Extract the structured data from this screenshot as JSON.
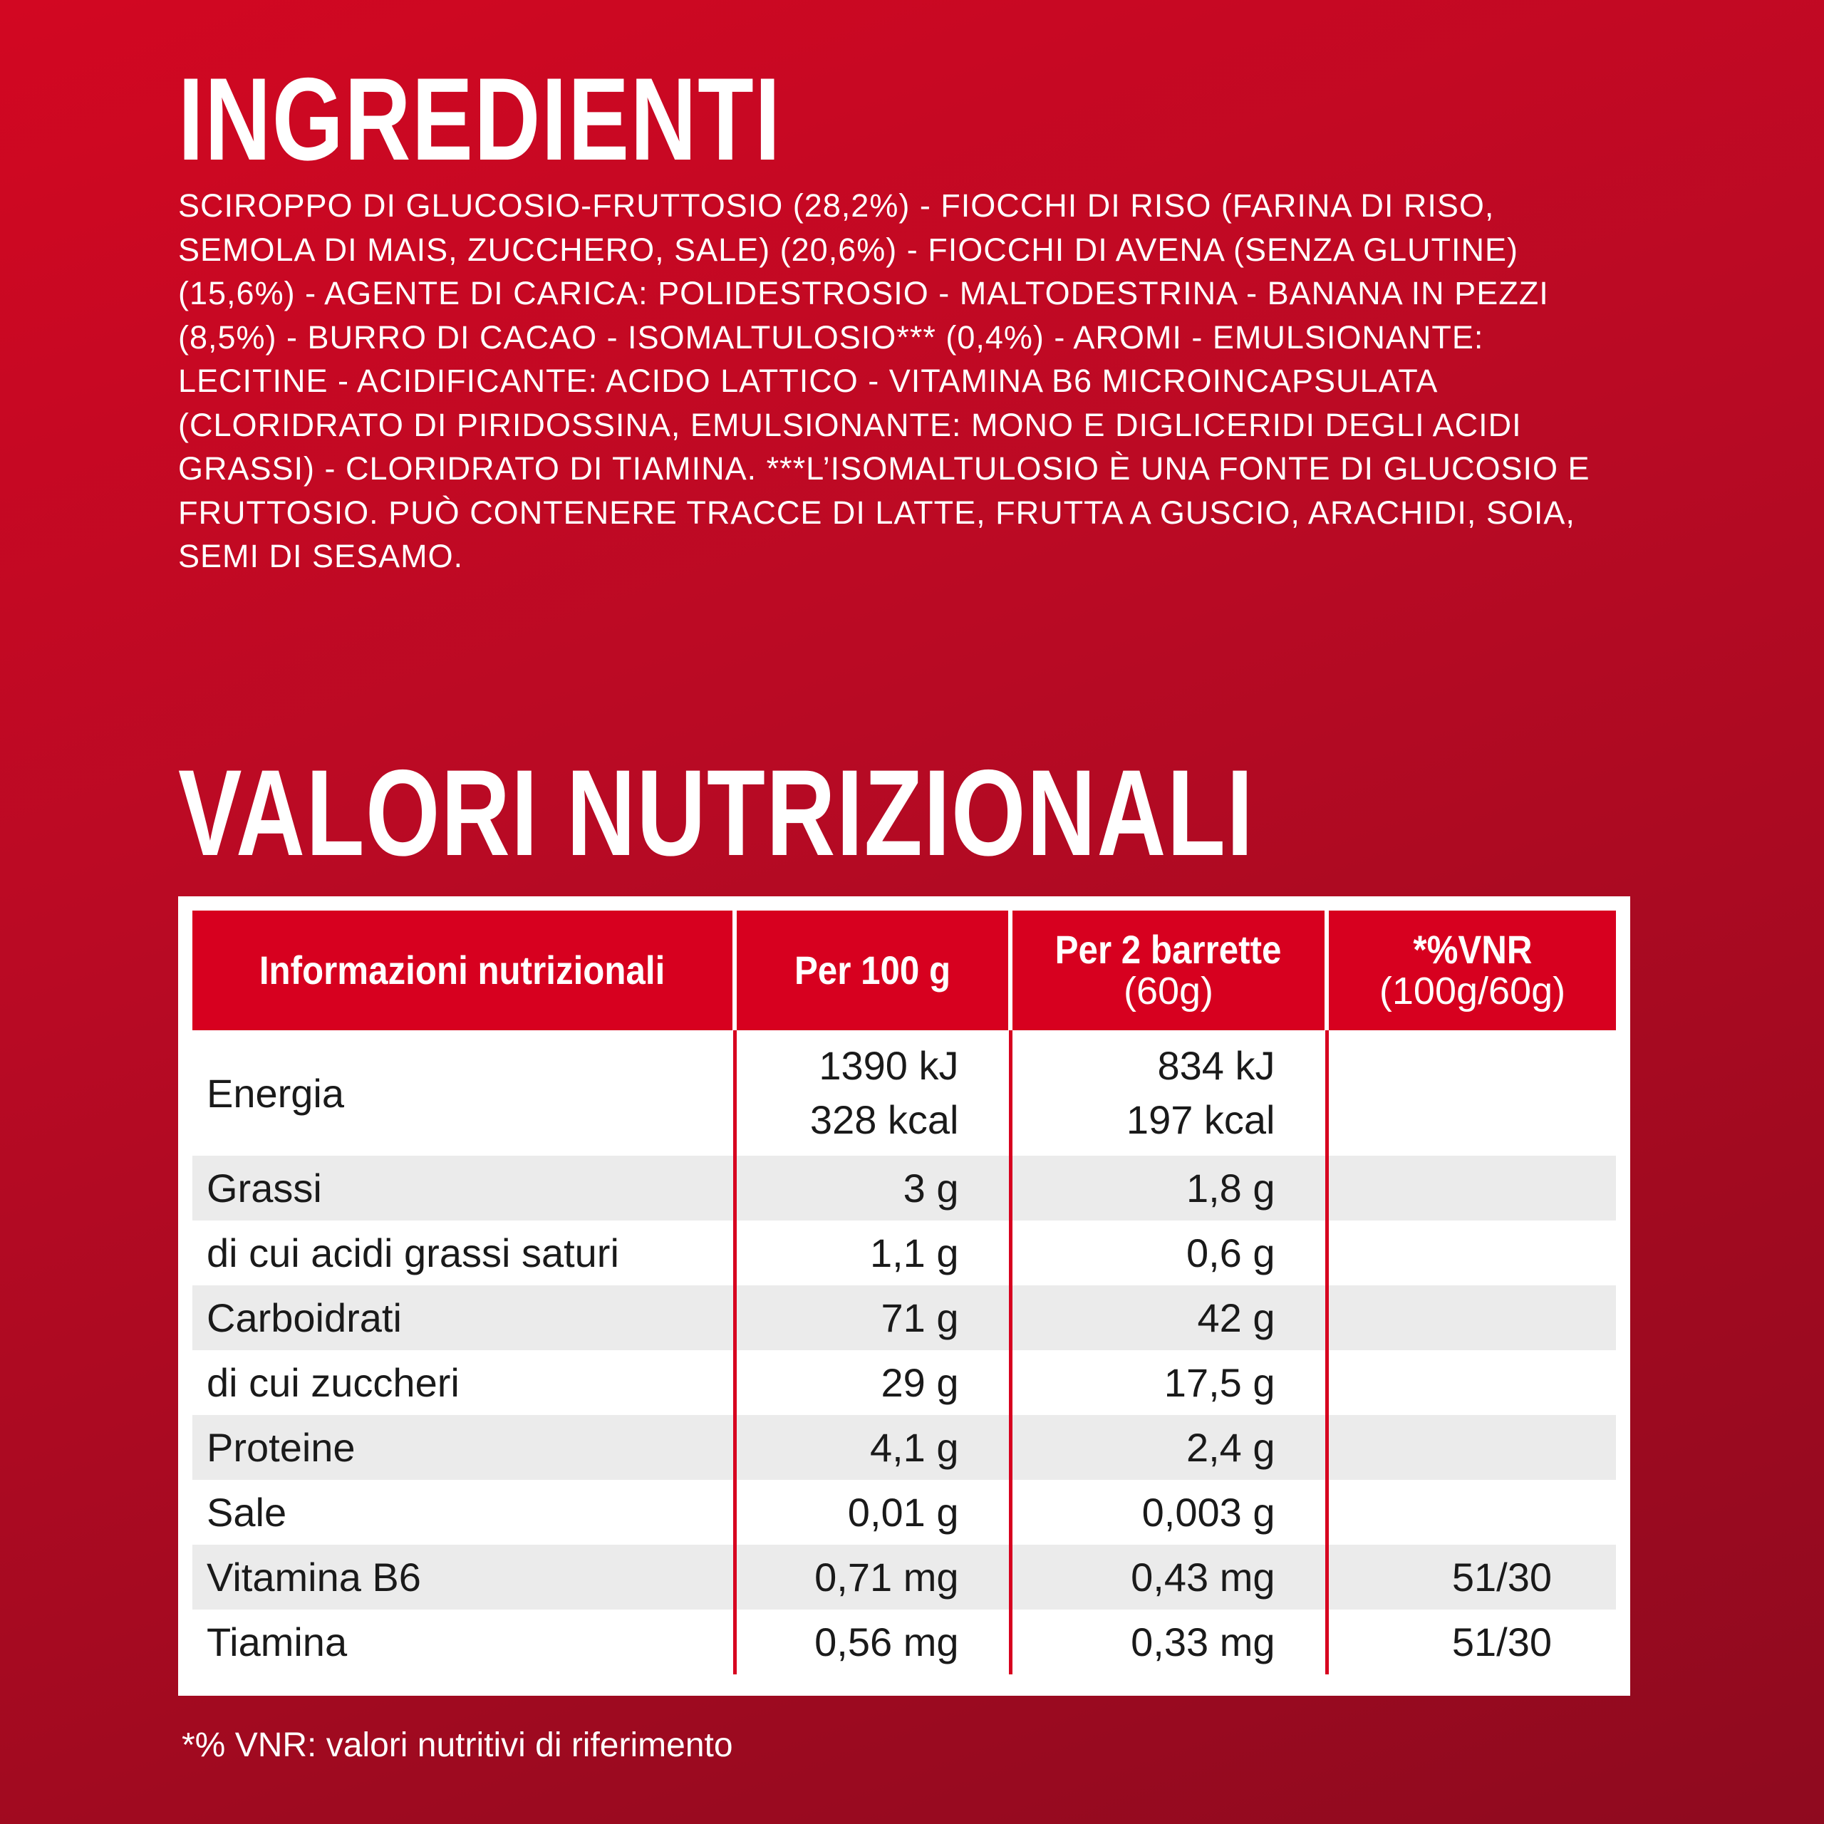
{
  "ingredients": {
    "title": "INGREDIENTI",
    "text": "SCIROPPO DI GLUCOSIO-FRUTTOSIO (28,2%) - FIOCCHI DI RISO (FARINA DI RISO, SEMOLA DI MAIS, ZUCCHERO, SALE) (20,6%) - FIOCCHI DI AVENA (SENZA GLUTINE) (15,6%) - AGENTE DI CARICA: POLIDESTROSIO - MALTODESTRINA - BANANA IN PEZZI (8,5%) - BURRO DI CACAO - ISOMALTULOSIO*** (0,4%) - AROMI - EMULSIONANTE: LECITINE - ACIDIFICANTE: ACIDO LATTICO - VITAMINA B6 MICROINCAPSULATA (CLORIDRATO DI PIRIDOSSINA, EMULSIONANTE: MONO E DIGLICERIDI DEGLI ACIDI GRASSI) - CLORIDRATO DI TIAMINA. ***L’ISOMALTULOSIO È UNA FONTE DI GLUCOSIO E FRUTTOSIO. PUÒ CONTENERE TRACCE DI LATTE, FRUTTA A GUSCIO, ARACHIDI, SOIA, SEMI DI SESAMO."
  },
  "nutrition": {
    "title": "VALORI NUTRIZIONALI",
    "headers": {
      "col1": "Informazioni nutrizionali",
      "col2": "Per 100 g",
      "col3_main": "Per 2 barrette",
      "col3_sub": "(60g)",
      "col4_main": "*%VNR",
      "col4_sub": "(100g/60g)"
    },
    "energy": {
      "name": "Energia",
      "per100_kj": "1390 kJ",
      "per100_kcal": "328 kcal",
      "per60_kj": "834 kJ",
      "per60_kcal": "197 kcal",
      "vnr": ""
    },
    "rows": [
      {
        "name": "Grassi",
        "per100": "3 g",
        "per60": "1,8 g",
        "vnr": ""
      },
      {
        "name": "di cui acidi grassi saturi",
        "per100": "1,1 g",
        "per60": "0,6 g",
        "vnr": ""
      },
      {
        "name": "Carboidrati",
        "per100": "71 g",
        "per60": "42 g",
        "vnr": ""
      },
      {
        "name": "di cui zuccheri",
        "per100": "29 g",
        "per60": "17,5 g",
        "vnr": ""
      },
      {
        "name": "Proteine",
        "per100": "4,1 g",
        "per60": "2,4 g",
        "vnr": ""
      },
      {
        "name": "Sale",
        "per100": "0,01 g",
        "per60": "0,003 g",
        "vnr": ""
      },
      {
        "name": "Vitamina B6",
        "per100": "0,71 mg",
        "per60": "0,43 mg",
        "vnr": "51/30"
      },
      {
        "name": "Tiamina",
        "per100": "0,56 mg",
        "per60": "0,33 mg",
        "vnr": "51/30"
      }
    ],
    "footnote": "*% VNR: valori nutritivi di riferimento"
  },
  "colors": {
    "accent_red": "#d7001f",
    "row_shade": "#ebebeb",
    "background_top": "#d20722",
    "background_bottom": "#8f0a1f"
  }
}
